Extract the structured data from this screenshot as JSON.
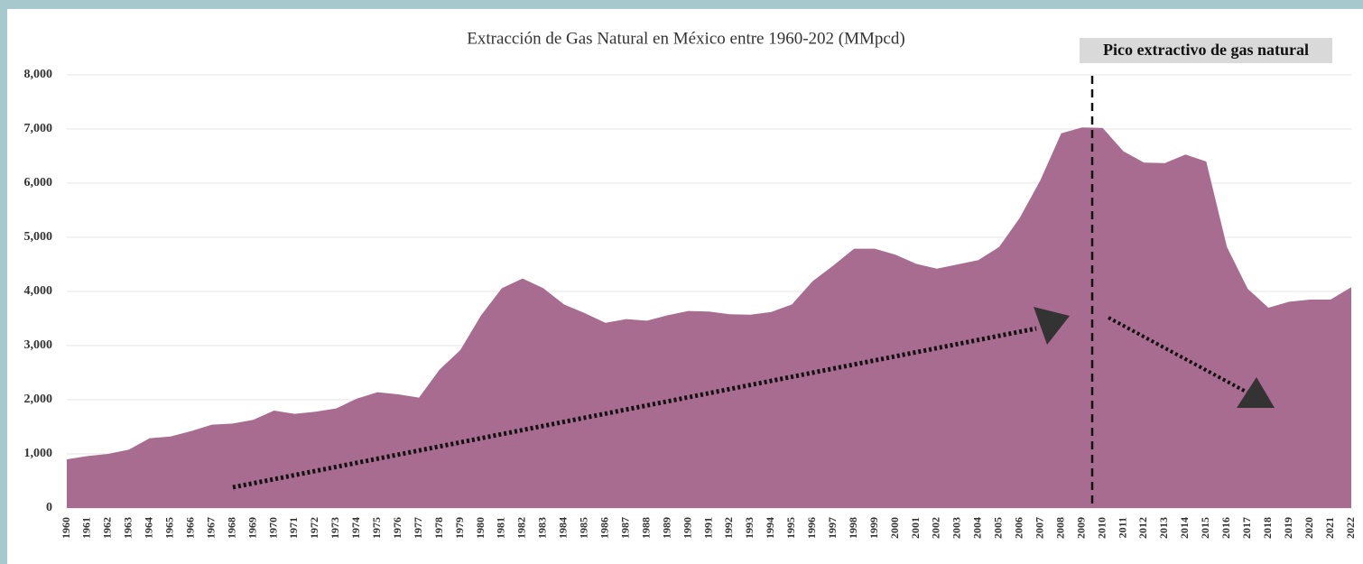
{
  "chart_data": {
    "type": "area",
    "title": "Extracción de Gas Natural en México entre 1960-202 (MMpcd)",
    "annotation": "Pico extractivo de gas natural",
    "color": "#a86c91",
    "categories": [
      "1960",
      "1961",
      "1962",
      "1963",
      "1964",
      "1965",
      "1966",
      "1967",
      "1968",
      "1969",
      "1970",
      "1971",
      "1972",
      "1973",
      "1974",
      "1975",
      "1976",
      "1977",
      "1978",
      "1979",
      "1980",
      "1981",
      "1982",
      "1983",
      "1984",
      "1985",
      "1986",
      "1987",
      "1988",
      "1989",
      "1990",
      "1991",
      "1992",
      "1993",
      "1994",
      "1995",
      "1996",
      "1997",
      "1998",
      "1999",
      "2000",
      "2001",
      "2002",
      "2003",
      "2004",
      "2005",
      "2006",
      "2007",
      "2008",
      "2009",
      "2010",
      "2011",
      "2012",
      "2013",
      "2014",
      "2015",
      "2016",
      "2017",
      "2018",
      "2019",
      "2020",
      "2021",
      "2022"
    ],
    "values": [
      900,
      960,
      1000,
      1080,
      1290,
      1320,
      1420,
      1540,
      1560,
      1630,
      1800,
      1740,
      1780,
      1840,
      2020,
      2140,
      2100,
      2040,
      2560,
      2920,
      3560,
      4060,
      4240,
      4060,
      3760,
      3600,
      3420,
      3490,
      3460,
      3560,
      3640,
      3630,
      3580,
      3570,
      3620,
      3760,
      4190,
      4480,
      4790,
      4790,
      4680,
      4510,
      4420,
      4500,
      4580,
      4820,
      5360,
      6060,
      6920,
      7030,
      7020,
      6590,
      6380,
      6370,
      6530,
      6400,
      4820,
      4050,
      3700,
      3810,
      3850,
      3850,
      4080
    ],
    "ylim": [
      0,
      8000
    ],
    "yticks": [
      0,
      {
        "value": 1000,
        "label": "1,000"
      },
      {
        "value": 2000,
        "label": "2,000"
      },
      {
        "value": 3000,
        "label": "3,000"
      },
      {
        "value": 4000,
        "label": "4,000"
      },
      {
        "value": 5000,
        "label": "5,000"
      },
      {
        "value": 6000,
        "label": "6,000"
      },
      {
        "value": 7000,
        "label": "7,000"
      },
      {
        "value": 8000,
        "label": "8,000"
      }
    ],
    "grid": true
  }
}
